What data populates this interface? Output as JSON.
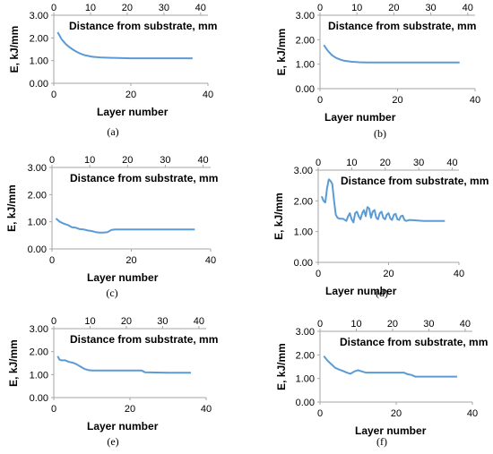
{
  "chart_data": [
    {
      "type": "line",
      "caption": "(a)",
      "ylabel": "E, kJ/mm",
      "xlabel": "Layer number",
      "x2label": "Distance from substrate, mm",
      "ylim": [
        0,
        3
      ],
      "yticks": [
        "0.00",
        "1.00",
        "2.00",
        "3.00"
      ],
      "xlim": [
        0,
        40
      ],
      "xticks": [
        "0",
        "20",
        "40"
      ],
      "x2lim": [
        0,
        42
      ],
      "x2ticks": [
        "0",
        "10",
        "20",
        "30",
        "40"
      ],
      "color": "#5b9bd5",
      "series": [
        {
          "x": [
            1,
            1.5,
            2,
            3,
            4,
            5,
            6,
            7,
            8,
            10,
            12,
            15,
            20,
            25,
            30,
            36
          ],
          "y": [
            2.25,
            2.1,
            1.95,
            1.75,
            1.6,
            1.48,
            1.38,
            1.3,
            1.24,
            1.17,
            1.14,
            1.12,
            1.1,
            1.1,
            1.1,
            1.1
          ]
        }
      ]
    },
    {
      "type": "line",
      "caption": "(b)",
      "ylabel": "E, kJ/mm",
      "xlabel": "Layer number",
      "x2label": "Distance from substrate, mm",
      "ylim": [
        0,
        3
      ],
      "yticks": [
        "0.00",
        "1.00",
        "2.00",
        "3.00"
      ],
      "xlim": [
        0,
        40
      ],
      "xticks": [
        "0",
        "20",
        "40"
      ],
      "x2lim": [
        0,
        42
      ],
      "x2ticks": [
        "0",
        "10",
        "20",
        "30",
        "40"
      ],
      "color": "#5b9bd5",
      "series": [
        {
          "x": [
            1,
            2,
            3,
            4,
            5,
            6,
            8,
            10,
            12,
            15,
            20,
            25,
            30,
            36
          ],
          "y": [
            1.78,
            1.55,
            1.38,
            1.27,
            1.2,
            1.15,
            1.1,
            1.08,
            1.07,
            1.07,
            1.07,
            1.07,
            1.07,
            1.07
          ]
        }
      ]
    },
    {
      "type": "line",
      "caption": "(c)",
      "ylabel": "E, kJ/mm",
      "xlabel": "Layer number",
      "x2label": "Distance from substrate, mm",
      "ylim": [
        0,
        3
      ],
      "yticks": [
        "0.00",
        "1.00",
        "2.00",
        "3.00"
      ],
      "xlim": [
        0,
        40
      ],
      "xticks": [
        "0",
        "20",
        "40"
      ],
      "x2lim": [
        0,
        42
      ],
      "x2ticks": [
        "0",
        "10",
        "20",
        "30",
        "40"
      ],
      "color": "#5b9bd5",
      "series": [
        {
          "x": [
            1,
            2,
            3,
            4,
            5,
            6,
            7,
            8,
            9,
            10,
            11,
            12,
            13,
            14,
            15,
            16,
            17,
            20,
            25,
            30,
            36
          ],
          "y": [
            1.12,
            1.0,
            0.93,
            0.88,
            0.8,
            0.78,
            0.73,
            0.72,
            0.68,
            0.66,
            0.62,
            0.6,
            0.6,
            0.62,
            0.7,
            0.72,
            0.72,
            0.72,
            0.72,
            0.72,
            0.72
          ]
        }
      ]
    },
    {
      "type": "line",
      "caption": "(d)",
      "ylabel": "E, kJ/mm",
      "xlabel": "Layer number",
      "x2label": "Distance from substrate, mm",
      "ylim": [
        0,
        3
      ],
      "yticks": [
        "0.00",
        "1.00",
        "2.00",
        "3.00"
      ],
      "xlim": [
        0,
        40
      ],
      "xticks": [
        "0",
        "20",
        "40"
      ],
      "x2lim": [
        0,
        42
      ],
      "x2ticks": [
        "0",
        "10",
        "20",
        "30",
        "40"
      ],
      "color": "#5b9bd5",
      "series": [
        {
          "x": [
            1,
            1.5,
            2,
            2.5,
            3,
            3.5,
            4,
            4.5,
            5,
            5.5,
            6,
            7,
            8,
            8.5,
            9,
            9.5,
            10,
            10.5,
            11,
            11.5,
            12,
            12.5,
            13,
            13.5,
            14,
            14.5,
            15,
            15.5,
            16,
            16.5,
            17,
            17.5,
            18,
            18.5,
            19,
            19.5,
            20,
            20.5,
            21,
            21.5,
            22,
            22.5,
            23,
            23.5,
            24,
            24.5,
            25,
            26,
            30,
            36
          ],
          "y": [
            2.15,
            2.0,
            1.95,
            2.4,
            2.7,
            2.65,
            2.55,
            2.0,
            1.55,
            1.45,
            1.42,
            1.42,
            1.35,
            1.5,
            1.6,
            1.4,
            1.3,
            1.6,
            1.65,
            1.5,
            1.4,
            1.6,
            1.7,
            1.5,
            1.8,
            1.75,
            1.45,
            1.65,
            1.7,
            1.45,
            1.4,
            1.6,
            1.65,
            1.45,
            1.4,
            1.55,
            1.6,
            1.42,
            1.38,
            1.55,
            1.58,
            1.4,
            1.38,
            1.5,
            1.52,
            1.38,
            1.35,
            1.38,
            1.35,
            1.35
          ]
        }
      ]
    },
    {
      "type": "line",
      "caption": "(e)",
      "ylabel": "E, kJ/mm",
      "xlabel": "Layer number",
      "x2label": "Distance from substrate, mm",
      "ylim": [
        0,
        3
      ],
      "yticks": [
        "0.00",
        "1.00",
        "2.00",
        "3.00"
      ],
      "xlim": [
        0,
        40
      ],
      "xticks": [
        "0",
        "20",
        "40"
      ],
      "x2lim": [
        0,
        42
      ],
      "x2ticks": [
        "0",
        "10",
        "20",
        "30",
        "40"
      ],
      "color": "#5b9bd5",
      "series": [
        {
          "x": [
            1,
            1.5,
            2,
            3,
            4,
            5,
            6,
            7,
            8,
            9,
            10,
            11,
            15,
            20,
            23,
            24,
            30,
            36
          ],
          "y": [
            1.8,
            1.65,
            1.62,
            1.62,
            1.55,
            1.52,
            1.45,
            1.35,
            1.25,
            1.2,
            1.18,
            1.18,
            1.18,
            1.18,
            1.18,
            1.1,
            1.08,
            1.08
          ]
        }
      ]
    },
    {
      "type": "line",
      "caption": "(f)",
      "ylabel": "E, kJ/mm",
      "xlabel": "Layer number",
      "x2label": "Distance from substrate, mm",
      "ylim": [
        0,
        3
      ],
      "yticks": [
        "0.00",
        "1.00",
        "2.00",
        "3.00"
      ],
      "xlim": [
        0,
        40
      ],
      "xticks": [
        "0",
        "20",
        "40"
      ],
      "x2lim": [
        0,
        42
      ],
      "x2ticks": [
        "0",
        "10",
        "20",
        "30",
        "40"
      ],
      "color": "#5b9bd5",
      "series": [
        {
          "x": [
            1,
            2,
            3,
            4,
            5,
            6,
            7,
            8,
            9,
            10,
            11,
            12,
            15,
            20,
            22,
            23,
            24,
            25,
            30,
            36
          ],
          "y": [
            1.95,
            1.75,
            1.6,
            1.45,
            1.38,
            1.32,
            1.25,
            1.2,
            1.3,
            1.35,
            1.3,
            1.25,
            1.25,
            1.25,
            1.25,
            1.18,
            1.15,
            1.08,
            1.08,
            1.08
          ]
        }
      ]
    }
  ]
}
